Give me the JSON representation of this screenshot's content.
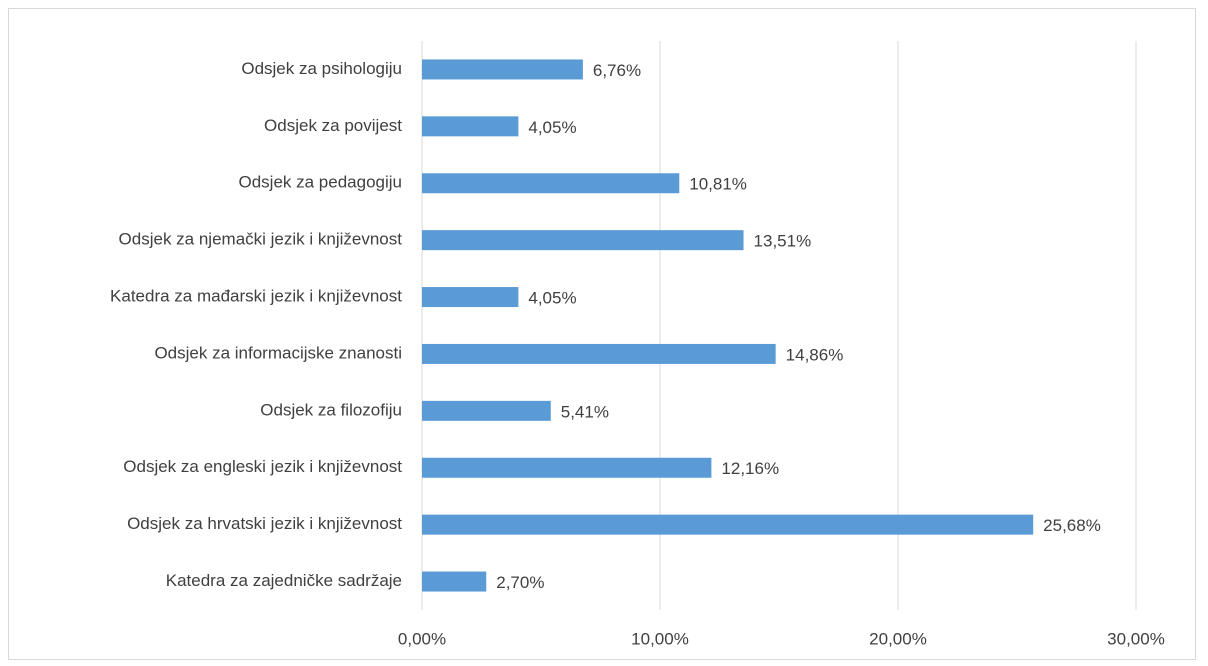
{
  "chart_data": {
    "type": "bar",
    "orientation": "horizontal",
    "categories": [
      "Odsjek za psihologiju",
      "Odsjek za povijest",
      "Odsjek za pedagogiju",
      "Odsjek za njemački jezik i književnost",
      "Katedra za mađarski jezik i književnost",
      "Odsjek za informacijske znanosti",
      "Odsjek za filozofiju",
      "Odsjek za engleski jezik i književnost",
      "Odsjek za hrvatski jezik i književnost",
      "Katedra za zajedničke sadržaje"
    ],
    "values": [
      6.76,
      4.05,
      10.81,
      13.51,
      4.05,
      14.86,
      5.41,
      12.16,
      25.68,
      2.7
    ],
    "value_labels": [
      "6,76%",
      "4,05%",
      "10,81%",
      "13,51%",
      "4,05%",
      "14,86%",
      "5,41%",
      "12,16%",
      "25,68%",
      "2,70%"
    ],
    "color": "#5b9bd5",
    "xlim": [
      0,
      30
    ],
    "xticks": [
      {
        "value": 0,
        "label": "0,00%"
      },
      {
        "value": 10,
        "label": "10,00%"
      },
      {
        "value": 20,
        "label": "20,00%"
      },
      {
        "value": 30,
        "label": "30,00%"
      }
    ],
    "grid": true
  }
}
